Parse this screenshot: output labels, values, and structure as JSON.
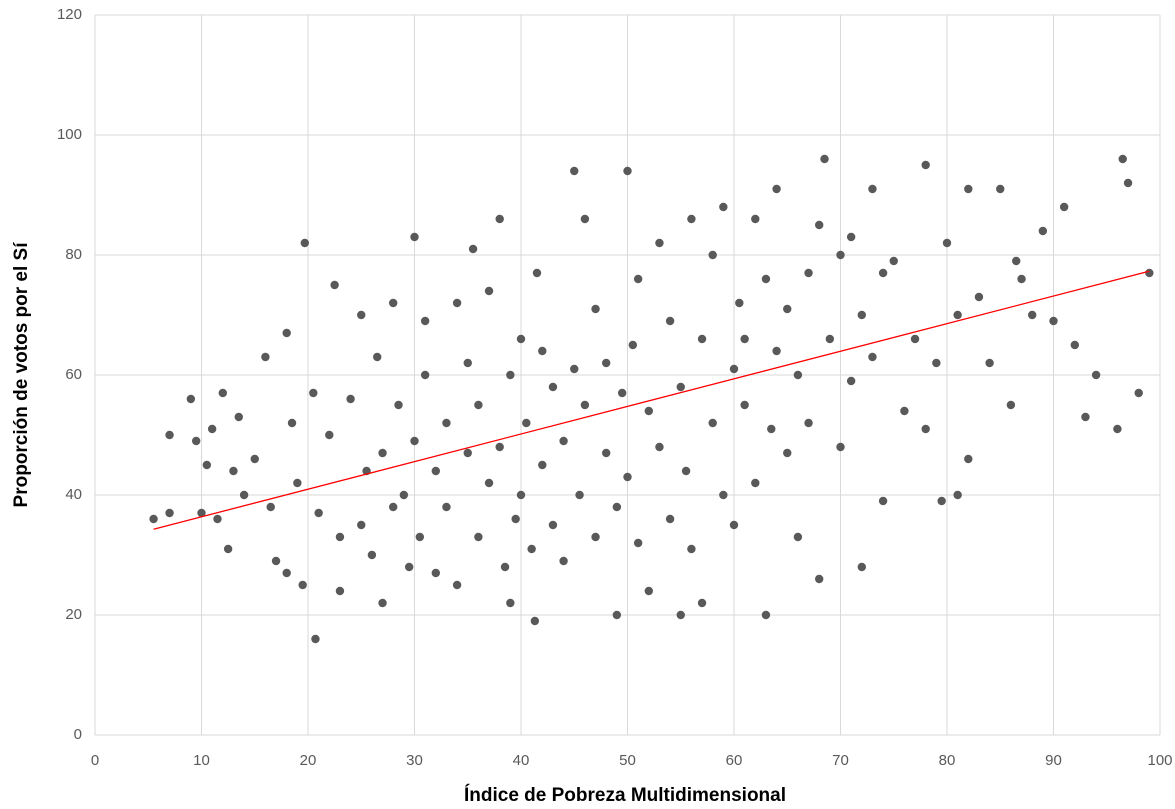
{
  "chart_data": {
    "type": "scatter",
    "x_label": "Índice de Pobreza Multidimensional",
    "y_label": "Proporción de votos por el Sí",
    "xlim": [
      0,
      100
    ],
    "ylim": [
      0,
      120
    ],
    "xticks": [
      0,
      10,
      20,
      30,
      40,
      50,
      60,
      70,
      80,
      90,
      100
    ],
    "yticks": [
      0,
      20,
      40,
      60,
      80,
      100,
      120
    ],
    "grid": true,
    "series": [
      {
        "color": "#595959",
        "x": [
          5.5,
          7,
          7,
          9,
          9.5,
          10,
          10.5,
          11,
          11.5,
          12,
          12.5,
          13,
          13.5,
          14,
          15,
          16,
          16.5,
          17,
          18,
          18,
          18.5,
          19,
          19.5,
          19.7,
          20.5,
          20.7,
          21,
          22,
          22.5,
          23,
          23,
          24,
          25,
          25,
          25.5,
          26,
          26.5,
          27,
          27,
          28,
          28,
          28.5,
          29,
          29.5,
          30,
          30,
          30.5,
          31,
          31,
          32,
          32,
          33,
          33,
          34,
          34,
          35,
          35,
          35.5,
          36,
          36,
          37,
          37,
          38,
          38,
          38.5,
          39,
          39,
          39.5,
          40,
          40,
          40.5,
          41,
          41.3,
          41.5,
          42,
          42,
          43,
          43,
          44,
          44,
          45,
          45,
          45.5,
          46,
          46,
          47,
          47,
          48,
          48,
          49,
          49,
          49.5,
          50,
          50,
          50.5,
          51,
          51,
          52,
          52,
          53,
          53,
          54,
          54,
          55,
          55,
          55.5,
          56,
          56,
          57,
          57,
          58,
          58,
          59,
          59,
          60,
          60,
          60.5,
          61,
          61,
          62,
          62,
          63,
          63,
          63.5,
          64,
          64,
          65,
          65,
          66,
          66,
          67,
          67,
          68,
          68,
          68.5,
          69,
          70,
          70,
          71,
          71,
          72,
          72,
          73,
          73,
          74,
          74,
          75,
          76,
          77,
          78,
          78,
          79,
          79.5,
          80,
          81,
          81,
          82,
          82,
          83,
          84,
          85,
          86,
          86.5,
          87,
          88,
          89,
          90,
          91,
          92,
          93,
          94,
          96,
          96.5,
          97,
          98,
          99
        ],
        "y": [
          36,
          37,
          50,
          56,
          49,
          37,
          45,
          51,
          36,
          57,
          31,
          44,
          53,
          40,
          46,
          63,
          38,
          29,
          67,
          27,
          52,
          42,
          25,
          82,
          57,
          16,
          37,
          50,
          75,
          33,
          24,
          56,
          35,
          70,
          44,
          30,
          63,
          22,
          47,
          38,
          72,
          55,
          40,
          28,
          83,
          49,
          33,
          60,
          69,
          44,
          27,
          52,
          38,
          72,
          25,
          47,
          62,
          81,
          33,
          55,
          42,
          74,
          48,
          86,
          28,
          60,
          22,
          36,
          66,
          40,
          52,
          31,
          19,
          77,
          45,
          64,
          35,
          58,
          49,
          29,
          94,
          61,
          40,
          55,
          86,
          33,
          71,
          47,
          62,
          20,
          38,
          57,
          94,
          43,
          65,
          32,
          76,
          54,
          24,
          48,
          82,
          36,
          69,
          20,
          58,
          44,
          86,
          31,
          66,
          22,
          52,
          80,
          40,
          88,
          61,
          35,
          72,
          55,
          66,
          42,
          86,
          20,
          76,
          51,
          64,
          91,
          47,
          71,
          33,
          60,
          77,
          52,
          26,
          85,
          96,
          66,
          48,
          80,
          59,
          83,
          28,
          70,
          91,
          63,
          39,
          77,
          79,
          54,
          66,
          95,
          51,
          62,
          39,
          82,
          40,
          70,
          46,
          91,
          73,
          62,
          91,
          55,
          79,
          76,
          70,
          84,
          69,
          88,
          65,
          53,
          60,
          51,
          96,
          92,
          57,
          77
        ]
      }
    ],
    "trendline": {
      "color": "#ff0000",
      "x": [
        5.5,
        99
      ],
      "y": [
        34.3,
        77.3
      ]
    }
  }
}
